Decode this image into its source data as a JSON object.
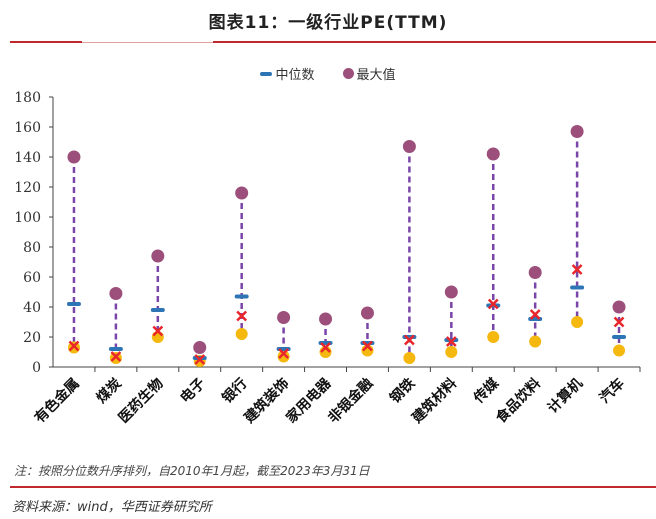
{
  "title": "图表11：一级行业PE(TTM)",
  "note": "注：按照分位数升序排列，自2010年1月起，截至2023年3月31日",
  "source": "资料来源：wind，华西证券研究所",
  "colors": {
    "median": "#2e75b6",
    "max": "#9b4f7a",
    "cross": "#e8262b",
    "low": "#f5b80f",
    "line": "#7a45a8",
    "rule": "#c0282d"
  },
  "chart_data": {
    "type": "scatter",
    "title": "图表11：一级行业PE(TTM)",
    "xlabel": "",
    "ylabel": "",
    "ylim": [
      0,
      180
    ],
    "yticks": [
      0,
      20,
      40,
      60,
      80,
      100,
      120,
      140,
      160,
      180
    ],
    "legend": [
      "中位数",
      "最大值"
    ],
    "legend_position": "top",
    "categories": [
      "有色金属",
      "煤炭",
      "医药生物",
      "电子",
      "银行",
      "建筑装饰",
      "家用电器",
      "非银金融",
      "钢铁",
      "建筑材料",
      "传媒",
      "食品饮料",
      "计算机",
      "汽车"
    ],
    "series": [
      {
        "key": "median",
        "name": "中位数",
        "marker": "dash",
        "values": [
          42,
          12,
          38,
          6,
          47,
          12,
          16,
          16,
          20,
          18,
          41,
          32,
          53,
          20
        ]
      },
      {
        "key": "max",
        "name": "最大值",
        "marker": "circle",
        "values": [
          140,
          49,
          74,
          13,
          116,
          33,
          32,
          36,
          147,
          50,
          142,
          63,
          157,
          40
        ]
      },
      {
        "key": "cross",
        "name": "",
        "marker": "x",
        "values": [
          14,
          7,
          24,
          5,
          34,
          9,
          13,
          14,
          18,
          17,
          42,
          35,
          65,
          30
        ]
      },
      {
        "key": "low",
        "name": "",
        "marker": "circle",
        "values": [
          13,
          6,
          20,
          4,
          22,
          7,
          10,
          11,
          6,
          10,
          20,
          17,
          30,
          11
        ]
      }
    ]
  }
}
